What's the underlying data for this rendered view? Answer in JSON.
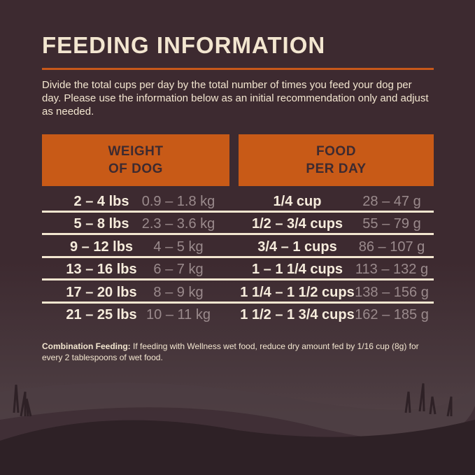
{
  "title": "FEEDING INFORMATION",
  "intro": "Divide the total cups per day by the total number of times you feed your dog per day. Please use the information below as an initial recommendation only and adjust as needed.",
  "table": {
    "headers": [
      {
        "line1": "WEIGHT",
        "line2": "OF DOG"
      },
      {
        "line1": "FOOD",
        "line2": "PER DAY"
      }
    ],
    "rows": [
      {
        "lbs": "2 – 4 lbs",
        "kg": "0.9 – 1.8 kg",
        "cups": "1/4 cup",
        "grams": "28 – 47 g"
      },
      {
        "lbs": "5 – 8 lbs",
        "kg": "2.3 – 3.6 kg",
        "cups": "1/2 – 3/4 cups",
        "grams": "55 – 79 g"
      },
      {
        "lbs": "9 – 12 lbs",
        "kg": "4 – 5 kg",
        "cups": "3/4 – 1 cups",
        "grams": "86 – 107 g"
      },
      {
        "lbs": "13 – 16 lbs",
        "kg": "6 – 7 kg",
        "cups": "1 – 1 1/4 cups",
        "grams": "113 – 132 g"
      },
      {
        "lbs": "17 – 20 lbs",
        "kg": "8 – 9 kg",
        "cups": "1 1/4 – 1 1/2 cups",
        "grams": "138 – 156 g"
      },
      {
        "lbs": "21 – 25 lbs",
        "kg": "10 – 11 kg",
        "cups": "1 1/2 – 1 3/4 cups",
        "grams": "162 – 185 g"
      }
    ]
  },
  "note": {
    "label": "Combination Feeding:",
    "text": " If feeding with Wellness wet food, reduce dry amount fed by 1/16 cup (8g) for every 2 tablespoons of wet food."
  },
  "colors": {
    "background": "#3d2a30",
    "accent": "#c85a17",
    "text": "#f3e6d0"
  }
}
